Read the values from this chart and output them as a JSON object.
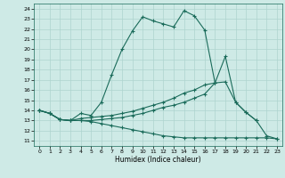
{
  "xlabel": "Humidex (Indice chaleur)",
  "bg_color": "#ceeae6",
  "grid_color": "#aed4cf",
  "line_color": "#1a6b5a",
  "xlim": [
    -0.5,
    23.5
  ],
  "ylim": [
    10.5,
    24.5
  ],
  "yticks": [
    11,
    12,
    13,
    14,
    15,
    16,
    17,
    18,
    19,
    20,
    21,
    22,
    23,
    24
  ],
  "xticks": [
    0,
    1,
    2,
    3,
    4,
    5,
    6,
    7,
    8,
    9,
    10,
    11,
    12,
    13,
    14,
    15,
    16,
    17,
    18,
    19,
    20,
    21,
    22,
    23
  ],
  "curve1_x": [
    0,
    1,
    2,
    3,
    4,
    5,
    6,
    7,
    8,
    9,
    10,
    11,
    12,
    13,
    14,
    15,
    16,
    17,
    18,
    19,
    20,
    21
  ],
  "curve1_y": [
    14.0,
    13.7,
    13.1,
    13.0,
    13.7,
    13.5,
    14.8,
    17.5,
    20.0,
    21.8,
    23.2,
    22.8,
    22.5,
    22.2,
    23.8,
    23.3,
    21.9,
    16.7,
    19.3,
    14.8,
    13.8,
    13.0
  ],
  "curve2_x": [
    0,
    1,
    2,
    3,
    4,
    5,
    6,
    7,
    8,
    9,
    10,
    11,
    12,
    13,
    14,
    15,
    16,
    17
  ],
  "curve2_y": [
    14.0,
    13.7,
    13.1,
    13.0,
    13.2,
    13.3,
    13.4,
    13.5,
    13.7,
    13.9,
    14.2,
    14.5,
    14.8,
    15.2,
    15.7,
    16.0,
    16.5,
    16.7
  ],
  "curve3_x": [
    0,
    1,
    2,
    3,
    4,
    5,
    6,
    7,
    8,
    9,
    10,
    11,
    12,
    13,
    14,
    15,
    16,
    17,
    18,
    19,
    20,
    21,
    22,
    23
  ],
  "curve3_y": [
    14.0,
    13.7,
    13.1,
    13.0,
    13.0,
    12.9,
    12.7,
    12.5,
    12.3,
    12.1,
    11.9,
    11.7,
    11.5,
    11.4,
    11.3,
    11.3,
    11.3,
    11.3,
    11.3,
    11.3,
    11.3,
    11.3,
    11.3,
    11.2
  ],
  "curve4_x": [
    0,
    1,
    2,
    3,
    4,
    5,
    6,
    7,
    8,
    9,
    10,
    11,
    12,
    13,
    14,
    15,
    16,
    17,
    18,
    19,
    20,
    21,
    22,
    23
  ],
  "curve4_y": [
    14.0,
    13.7,
    13.1,
    13.0,
    13.0,
    13.0,
    13.1,
    13.2,
    13.3,
    13.5,
    13.7,
    14.0,
    14.3,
    14.5,
    14.8,
    15.2,
    15.6,
    16.7,
    16.8,
    14.8,
    13.8,
    13.0,
    11.5,
    11.2
  ]
}
